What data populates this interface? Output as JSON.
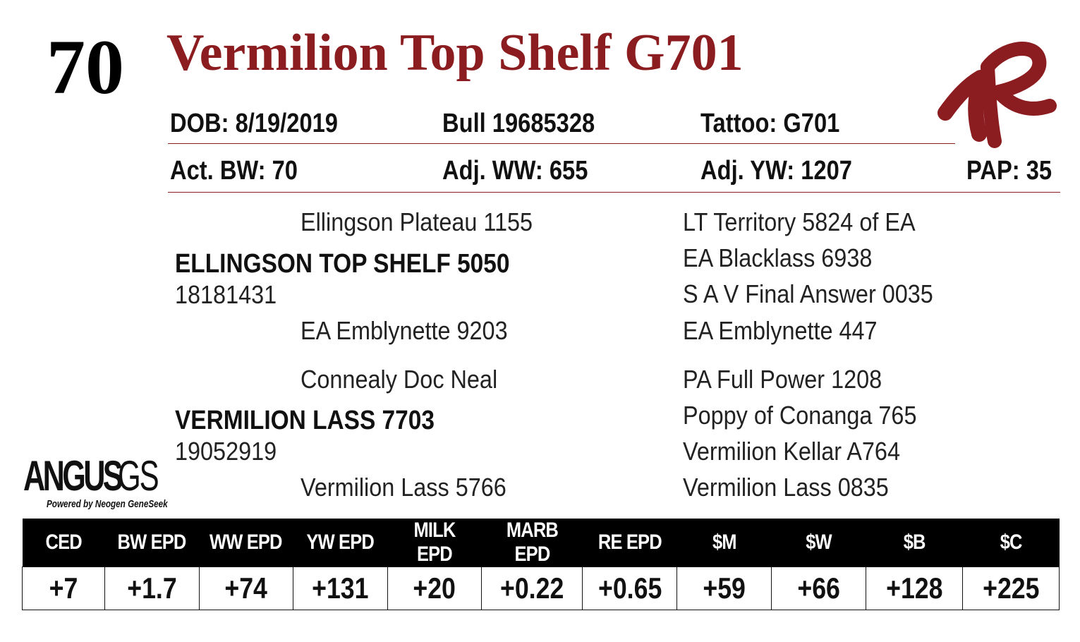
{
  "lot_number": "70",
  "name": "Vermilion Top Shelf G701",
  "details": {
    "dob": "DOB: 8/19/2019",
    "registration": "Bull   19685328",
    "tattoo": "Tattoo:  G701"
  },
  "weights": {
    "act_bw": "Act. BW: 70",
    "adj_ww": "Adj. WW: 655",
    "adj_yw": "Adj. YW: 1207",
    "pap": "PAP: 35"
  },
  "pedigree": {
    "sire_sire": "Ellingson Plateau 1155",
    "sire": "ELLINGSON TOP SHELF 5050",
    "sire_reg": "18181431",
    "sire_dam": "EA Emblynette 9203",
    "dam_sire": "Connealy Doc Neal",
    "dam": "VERMILION LASS 7703",
    "dam_reg": "19052919",
    "dam_dam": "Vermilion Lass 5766",
    "right": [
      "LT Territory 5824 of EA",
      "EA Blacklass 6938",
      "S A V Final Answer 0035",
      "EA Emblynette 447",
      "PA Full Power 1208",
      "Poppy of Conanga 765",
      "Vermilion Kellar A764",
      "Vermilion Lass 0835"
    ]
  },
  "logo": {
    "angus_word": "ANGUS",
    "gs_word": "GS",
    "tagline": "Powered by Neogen GeneSeek"
  },
  "epds": {
    "headers": [
      "CED",
      "BW EPD",
      "WW EPD",
      "YW EPD",
      "MILK EPD",
      "MARB EPD",
      "RE EPD",
      "$M",
      "$W",
      "$B",
      "$C"
    ],
    "values": [
      "+7",
      "+1.7",
      "+74",
      "+131",
      "+20",
      "+0.22",
      "+0.65",
      "+59",
      "+66",
      "+128",
      "+225"
    ]
  },
  "colors": {
    "accent": "#8b1c1f",
    "text": "#111111"
  }
}
